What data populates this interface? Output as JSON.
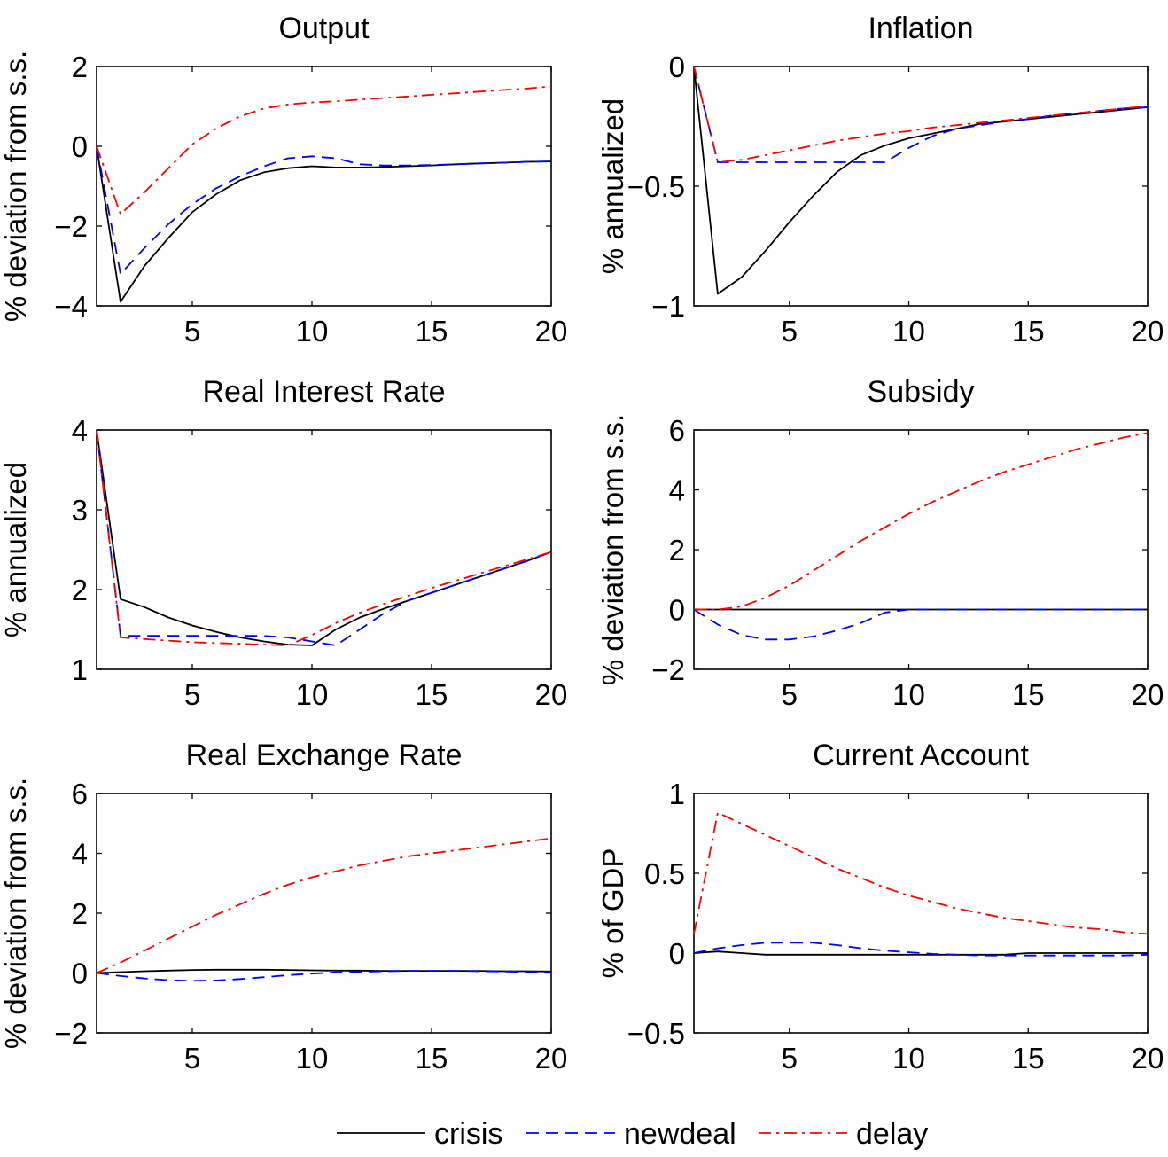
{
  "chart_data": [
    {
      "type": "line",
      "title": "Output",
      "ylabel": "% deviation from s.s.",
      "xlim": [
        1,
        20
      ],
      "ylim": [
        -4,
        2
      ],
      "xticks": [
        "5",
        "10",
        "15",
        "20"
      ],
      "yticks": [
        "−4",
        "−2",
        "0",
        "2"
      ],
      "series": [
        {
          "name": "crisis",
          "x": [
            1,
            2,
            3,
            4,
            5,
            6,
            7,
            8,
            9,
            10,
            11,
            12,
            13,
            14,
            15,
            16,
            17,
            18,
            19,
            20
          ],
          "values": [
            0,
            -3.9,
            -3.0,
            -2.3,
            -1.65,
            -1.2,
            -0.85,
            -0.65,
            -0.55,
            -0.5,
            -0.53,
            -0.53,
            -0.52,
            -0.5,
            -0.48,
            -0.45,
            -0.43,
            -0.41,
            -0.39,
            -0.38
          ]
        },
        {
          "name": "newdeal",
          "x": [
            1,
            2,
            3,
            4,
            5,
            6,
            7,
            8,
            9,
            10,
            11,
            12,
            13,
            14,
            15,
            16,
            17,
            18,
            19,
            20
          ],
          "values": [
            0,
            -3.2,
            -2.55,
            -1.95,
            -1.45,
            -1.05,
            -0.75,
            -0.5,
            -0.3,
            -0.25,
            -0.3,
            -0.45,
            -0.48,
            -0.48,
            -0.47,
            -0.45,
            -0.43,
            -0.41,
            -0.39,
            -0.38
          ]
        },
        {
          "name": "delay",
          "x": [
            1,
            2,
            3,
            4,
            5,
            6,
            7,
            8,
            9,
            10,
            11,
            12,
            13,
            14,
            15,
            16,
            17,
            18,
            19,
            20
          ],
          "values": [
            0,
            -1.7,
            -1.15,
            -0.55,
            0.05,
            0.45,
            0.75,
            0.95,
            1.05,
            1.1,
            1.13,
            1.17,
            1.21,
            1.25,
            1.29,
            1.33,
            1.37,
            1.41,
            1.45,
            1.5
          ]
        }
      ]
    },
    {
      "type": "line",
      "title": "Inflation",
      "ylabel": "% annualized",
      "xlim": [
        1,
        20
      ],
      "ylim": [
        -1,
        0
      ],
      "xticks": [
        "5",
        "10",
        "15",
        "20"
      ],
      "yticks": [
        "−1",
        "−0.5",
        "0"
      ],
      "series": [
        {
          "name": "crisis",
          "x": [
            1,
            2,
            3,
            4,
            5,
            6,
            7,
            8,
            9,
            10,
            11,
            12,
            13,
            14,
            15,
            16,
            17,
            18,
            19,
            20
          ],
          "values": [
            0,
            -0.95,
            -0.88,
            -0.77,
            -0.65,
            -0.54,
            -0.44,
            -0.37,
            -0.33,
            -0.3,
            -0.28,
            -0.26,
            -0.24,
            -0.23,
            -0.22,
            -0.21,
            -0.2,
            -0.19,
            -0.18,
            -0.17
          ]
        },
        {
          "name": "newdeal",
          "x": [
            1,
            2,
            3,
            4,
            5,
            6,
            7,
            8,
            9,
            10,
            11,
            12,
            13,
            14,
            15,
            16,
            17,
            18,
            19,
            20
          ],
          "values": [
            0,
            -0.4,
            -0.4,
            -0.4,
            -0.4,
            -0.4,
            -0.4,
            -0.4,
            -0.4,
            -0.34,
            -0.29,
            -0.26,
            -0.245,
            -0.23,
            -0.22,
            -0.205,
            -0.195,
            -0.185,
            -0.175,
            -0.17
          ]
        },
        {
          "name": "delay",
          "x": [
            1,
            2,
            3,
            4,
            5,
            6,
            7,
            8,
            9,
            10,
            11,
            12,
            13,
            14,
            15,
            16,
            17,
            18,
            19,
            20
          ],
          "values": [
            0,
            -0.4,
            -0.39,
            -0.37,
            -0.35,
            -0.33,
            -0.31,
            -0.295,
            -0.28,
            -0.27,
            -0.255,
            -0.245,
            -0.235,
            -0.225,
            -0.215,
            -0.205,
            -0.195,
            -0.185,
            -0.175,
            -0.165
          ]
        }
      ]
    },
    {
      "type": "line",
      "title": "Real Interest Rate",
      "ylabel": "% annualized",
      "xlim": [
        1,
        20
      ],
      "ylim": [
        1,
        4
      ],
      "xticks": [
        "5",
        "10",
        "15",
        "20"
      ],
      "yticks": [
        "1",
        "2",
        "3",
        "4"
      ],
      "series": [
        {
          "name": "crisis",
          "x": [
            1,
            2,
            3,
            4,
            5,
            6,
            7,
            8,
            9,
            10,
            11,
            12,
            13,
            14,
            15,
            16,
            17,
            18,
            19,
            20
          ],
          "values": [
            4,
            1.88,
            1.78,
            1.65,
            1.55,
            1.47,
            1.4,
            1.35,
            1.31,
            1.3,
            1.5,
            1.65,
            1.76,
            1.86,
            1.96,
            2.06,
            2.16,
            2.26,
            2.36,
            2.47
          ]
        },
        {
          "name": "newdeal",
          "x": [
            1,
            2,
            3,
            4,
            5,
            6,
            7,
            8,
            9,
            10,
            11,
            12,
            13,
            14,
            15,
            16,
            17,
            18,
            19,
            20
          ],
          "values": [
            4,
            1.42,
            1.42,
            1.42,
            1.42,
            1.42,
            1.42,
            1.42,
            1.4,
            1.35,
            1.3,
            1.5,
            1.7,
            1.86,
            1.96,
            2.06,
            2.16,
            2.26,
            2.36,
            2.47
          ]
        },
        {
          "name": "delay",
          "x": [
            1,
            2,
            3,
            4,
            5,
            6,
            7,
            8,
            9,
            10,
            11,
            12,
            13,
            14,
            15,
            16,
            17,
            18,
            19,
            20
          ],
          "values": [
            4,
            1.4,
            1.38,
            1.36,
            1.34,
            1.33,
            1.32,
            1.31,
            1.3,
            1.43,
            1.58,
            1.71,
            1.82,
            1.92,
            2.02,
            2.11,
            2.2,
            2.29,
            2.38,
            2.47
          ]
        }
      ]
    },
    {
      "type": "line",
      "title": "Subsidy",
      "ylabel": "% deviation from s.s.",
      "xlim": [
        1,
        20
      ],
      "ylim": [
        -2,
        6
      ],
      "xticks": [
        "5",
        "10",
        "15",
        "20"
      ],
      "yticks": [
        "−2",
        "0",
        "2",
        "4",
        "6"
      ],
      "series": [
        {
          "name": "crisis",
          "x": [
            1,
            2,
            3,
            4,
            5,
            6,
            7,
            8,
            9,
            10,
            11,
            12,
            13,
            14,
            15,
            16,
            17,
            18,
            19,
            20
          ],
          "values": [
            0,
            0,
            0,
            0,
            0,
            0,
            0,
            0,
            0,
            0,
            0,
            0,
            0,
            0,
            0,
            0,
            0,
            0,
            0,
            0
          ]
        },
        {
          "name": "newdeal",
          "x": [
            1,
            2,
            3,
            4,
            5,
            6,
            7,
            8,
            9,
            10,
            11,
            12,
            13,
            14,
            15,
            16,
            17,
            18,
            19,
            20
          ],
          "values": [
            0,
            -0.5,
            -0.85,
            -1.0,
            -1.0,
            -0.9,
            -0.7,
            -0.45,
            -0.1,
            0,
            0,
            0,
            0,
            0,
            0,
            0,
            0,
            0,
            0,
            0
          ]
        },
        {
          "name": "delay",
          "x": [
            1,
            2,
            3,
            4,
            5,
            6,
            7,
            8,
            9,
            10,
            11,
            12,
            13,
            14,
            15,
            16,
            17,
            18,
            19,
            20
          ],
          "values": [
            0,
            0,
            0.1,
            0.4,
            0.8,
            1.3,
            1.8,
            2.3,
            2.75,
            3.2,
            3.6,
            3.95,
            4.3,
            4.6,
            4.85,
            5.1,
            5.35,
            5.55,
            5.75,
            5.9
          ]
        }
      ]
    },
    {
      "type": "line",
      "title": "Real Exchange Rate",
      "ylabel": "% deviation from s.s.",
      "xlim": [
        1,
        20
      ],
      "ylim": [
        -2,
        6
      ],
      "xticks": [
        "5",
        "10",
        "15",
        "20"
      ],
      "yticks": [
        "−2",
        "0",
        "2",
        "4",
        "6"
      ],
      "series": [
        {
          "name": "crisis",
          "x": [
            1,
            2,
            3,
            4,
            5,
            6,
            7,
            8,
            9,
            10,
            11,
            12,
            13,
            14,
            15,
            16,
            17,
            18,
            19,
            20
          ],
          "values": [
            0,
            0.03,
            0.06,
            0.08,
            0.1,
            0.11,
            0.11,
            0.11,
            0.1,
            0.09,
            0.08,
            0.08,
            0.07,
            0.07,
            0.07,
            0.07,
            0.07,
            0.06,
            0.06,
            0.05
          ]
        },
        {
          "name": "newdeal",
          "x": [
            1,
            2,
            3,
            4,
            5,
            6,
            7,
            8,
            9,
            10,
            11,
            12,
            13,
            14,
            15,
            16,
            17,
            18,
            19,
            20
          ],
          "values": [
            0,
            -0.1,
            -0.18,
            -0.24,
            -0.26,
            -0.25,
            -0.2,
            -0.14,
            -0.07,
            -0.02,
            0.02,
            0.04,
            0.06,
            0.07,
            0.07,
            0.07,
            0.06,
            0.05,
            0.04,
            0.03
          ]
        },
        {
          "name": "delay",
          "x": [
            1,
            2,
            3,
            4,
            5,
            6,
            7,
            8,
            9,
            10,
            11,
            12,
            13,
            14,
            15,
            16,
            17,
            18,
            19,
            20
          ],
          "values": [
            0,
            0.35,
            0.75,
            1.15,
            1.55,
            1.95,
            2.3,
            2.65,
            2.95,
            3.2,
            3.4,
            3.6,
            3.75,
            3.9,
            4.0,
            4.1,
            4.2,
            4.3,
            4.4,
            4.5
          ]
        }
      ]
    },
    {
      "type": "line",
      "title": "Current Account",
      "ylabel": "% of GDP",
      "xlim": [
        1,
        20
      ],
      "ylim": [
        -0.5,
        1
      ],
      "xticks": [
        "5",
        "10",
        "15",
        "20"
      ],
      "yticks": [
        "−0.5",
        "0",
        "0.5",
        "1"
      ],
      "series": [
        {
          "name": "crisis",
          "x": [
            1,
            2,
            3,
            4,
            5,
            6,
            7,
            8,
            9,
            10,
            11,
            12,
            13,
            14,
            15,
            16,
            17,
            18,
            19,
            20
          ],
          "values": [
            0,
            0.01,
            0,
            -0.01,
            -0.01,
            -0.01,
            -0.01,
            -0.01,
            -0.01,
            -0.01,
            -0.01,
            -0.01,
            -0.01,
            -0.01,
            0,
            0,
            0,
            0,
            0,
            0
          ]
        },
        {
          "name": "newdeal",
          "x": [
            1,
            2,
            3,
            4,
            5,
            6,
            7,
            8,
            9,
            10,
            11,
            12,
            13,
            14,
            15,
            16,
            17,
            18,
            19,
            20
          ],
          "values": [
            0,
            0.03,
            0.05,
            0.065,
            0.065,
            0.065,
            0.05,
            0.03,
            0.015,
            0.005,
            -0.005,
            -0.01,
            -0.015,
            -0.015,
            -0.015,
            -0.015,
            -0.015,
            -0.015,
            -0.015,
            -0.01
          ]
        },
        {
          "name": "delay",
          "x": [
            1,
            2,
            3,
            4,
            5,
            6,
            7,
            8,
            9,
            10,
            11,
            12,
            13,
            14,
            15,
            16,
            17,
            18,
            19,
            20
          ],
          "values": [
            0.12,
            0.88,
            0.81,
            0.74,
            0.67,
            0.6,
            0.53,
            0.47,
            0.41,
            0.36,
            0.32,
            0.28,
            0.25,
            0.22,
            0.2,
            0.18,
            0.16,
            0.15,
            0.13,
            0.12
          ]
        }
      ]
    }
  ],
  "legend": {
    "items": [
      {
        "label": "crisis",
        "color": "#000000",
        "dash": "solid"
      },
      {
        "label": "newdeal",
        "color": "#0000ff",
        "dash": "dashed"
      },
      {
        "label": "delay",
        "color": "#ff0000",
        "dash": "dash-dot"
      }
    ]
  }
}
